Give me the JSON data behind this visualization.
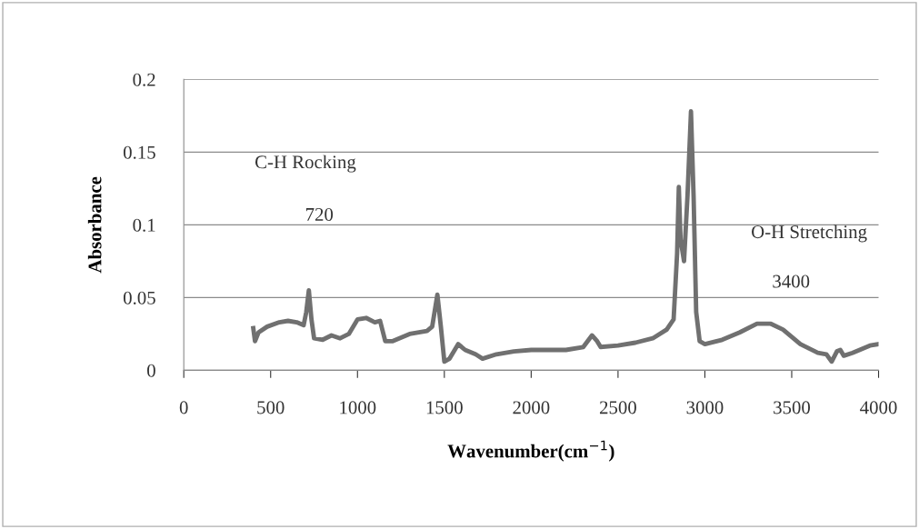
{
  "chart_data": {
    "type": "line",
    "xlabel": "Wavenumber(cm$^{−1}$)",
    "ylabel": "Absorbance",
    "xlim": [
      0,
      4000
    ],
    "xticks": [
      0,
      500,
      1000,
      1500,
      2000,
      2500,
      3000,
      3500,
      4000
    ],
    "ylim": [
      0,
      0.2
    ],
    "yticks": [
      0,
      0.05,
      0.1,
      0.15,
      0.2
    ],
    "grid": "y",
    "legend": false,
    "marker": "none",
    "line_style": "solid",
    "series": [
      {
        "color": "#707070",
        "x": [
          400,
          410,
          430,
          480,
          550,
          600,
          650,
          690,
          705,
          720,
          735,
          750,
          800,
          850,
          900,
          950,
          1000,
          1050,
          1100,
          1130,
          1160,
          1200,
          1300,
          1400,
          1430,
          1460,
          1480,
          1500,
          1530,
          1580,
          1620,
          1680,
          1720,
          1800,
          1900,
          2000,
          2100,
          2200,
          2300,
          2350,
          2380,
          2400,
          2500,
          2600,
          2700,
          2780,
          2820,
          2840,
          2850,
          2860,
          2880,
          2900,
          2920,
          2935,
          2950,
          2970,
          3000,
          3100,
          3200,
          3300,
          3380,
          3450,
          3550,
          3650,
          3700,
          3730,
          3760,
          3780,
          3800,
          3850,
          3950,
          4000
        ],
        "values": [
          0.029,
          0.02,
          0.026,
          0.03,
          0.033,
          0.034,
          0.033,
          0.031,
          0.04,
          0.055,
          0.035,
          0.022,
          0.021,
          0.024,
          0.022,
          0.025,
          0.035,
          0.036,
          0.033,
          0.034,
          0.02,
          0.02,
          0.025,
          0.027,
          0.03,
          0.052,
          0.03,
          0.006,
          0.008,
          0.018,
          0.014,
          0.011,
          0.008,
          0.011,
          0.013,
          0.014,
          0.014,
          0.014,
          0.016,
          0.024,
          0.02,
          0.016,
          0.017,
          0.019,
          0.022,
          0.028,
          0.035,
          0.08,
          0.126,
          0.09,
          0.075,
          0.12,
          0.178,
          0.12,
          0.04,
          0.02,
          0.018,
          0.021,
          0.026,
          0.032,
          0.032,
          0.028,
          0.018,
          0.012,
          0.011,
          0.006,
          0.013,
          0.014,
          0.01,
          0.012,
          0.017,
          0.018
        ]
      }
    ],
    "annotations": [
      "C-H Rocking",
      "720",
      "O-H Stretching",
      "3400"
    ]
  }
}
